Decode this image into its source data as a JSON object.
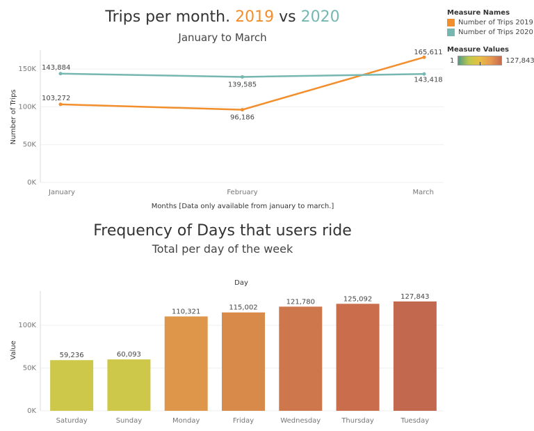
{
  "chart1": {
    "title_prefix": "Trips per month.",
    "title_y1": "2019",
    "title_vs": "vs",
    "title_y2": "2020",
    "subtitle": "January to March",
    "xlabel": "Months [Data only available from january to march.]",
    "ylabel": "Number of Trips",
    "yticks": [
      "0K",
      "50K",
      "100K",
      "150K"
    ]
  },
  "chart2": {
    "title": "Frequency of Days that users ride",
    "subtitle": "Total per day of the week",
    "top_label": "Day",
    "ylabel": "Value",
    "yticks": [
      "0K",
      "50K",
      "100K"
    ]
  },
  "legend": {
    "names_title": "Measure Names",
    "items": [
      {
        "label": "Number of Trips 2019",
        "color": "#f28e2b"
      },
      {
        "label": "Number of Trips 2020",
        "color": "#76b7b2"
      }
    ],
    "values_title": "Measure Values",
    "min_label": "1",
    "max_label": "127,843"
  },
  "chart_data": [
    {
      "type": "line",
      "title": "Trips per month. 2019 vs 2020",
      "subtitle": "January to March",
      "categories": [
        "January",
        "February",
        "March"
      ],
      "series": [
        {
          "name": "Number of Trips 2019",
          "color": "#f28e2b",
          "values": [
            103272,
            96186,
            165611
          ],
          "labels": [
            "103,272",
            "96,186",
            "165,611"
          ]
        },
        {
          "name": "Number of Trips 2020",
          "color": "#76b7b2",
          "values": [
            143884,
            139585,
            143418
          ],
          "labels": [
            "143,884",
            "139,585",
            "143,418"
          ]
        }
      ],
      "xlabel": "Months [Data only available from january to march.]",
      "ylabel": "Number of Trips",
      "ylim": [
        0,
        175000
      ],
      "grid": true,
      "legend": "right"
    },
    {
      "type": "bar",
      "title": "Frequency of Days that users ride",
      "subtitle": "Total per day of the week",
      "categories": [
        "Saturday",
        "Sunday",
        "Monday",
        "Friday",
        "Wednesday",
        "Thursday",
        "Tuesday"
      ],
      "values": [
        59236,
        60093,
        110321,
        115002,
        121780,
        125092,
        127843
      ],
      "labels": [
        "59,236",
        "60,093",
        "110,321",
        "115,002",
        "121,780",
        "125,092",
        "127,843"
      ],
      "colors": [
        "#cec84a",
        "#cec84a",
        "#de964a",
        "#d88a4b",
        "#cf774c",
        "#c96d4d",
        "#c2684e"
      ],
      "xlabel": "Day",
      "ylabel": "Value",
      "ylim": [
        0,
        140000
      ],
      "grid": true
    }
  ]
}
